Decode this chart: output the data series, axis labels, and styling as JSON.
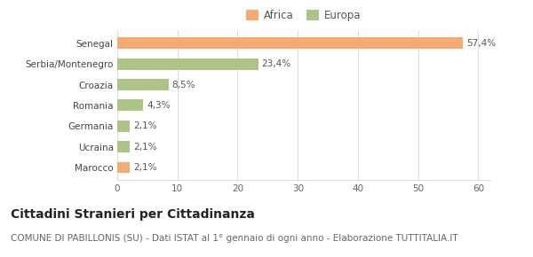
{
  "categories": [
    "Marocco",
    "Ucraina",
    "Germania",
    "Romania",
    "Croazia",
    "Serbia/Montenegro",
    "Senegal"
  ],
  "values": [
    2.1,
    2.1,
    2.1,
    4.3,
    8.5,
    23.4,
    57.4
  ],
  "labels": [
    "2,1%",
    "2,1%",
    "2,1%",
    "4,3%",
    "8,5%",
    "23,4%",
    "57,4%"
  ],
  "colors": [
    "#f5aa72",
    "#adc487",
    "#adc487",
    "#adc487",
    "#adc487",
    "#adc487",
    "#f5aa72"
  ],
  "legend_items": [
    {
      "label": "Africa",
      "color": "#f5aa72"
    },
    {
      "label": "Europa",
      "color": "#adc487"
    }
  ],
  "xlim": [
    0,
    62
  ],
  "xticks": [
    0,
    10,
    20,
    30,
    40,
    50,
    60
  ],
  "title": "Cittadini Stranieri per Cittadinanza",
  "subtitle": "COMUNE DI PABILLONIS (SU) - Dati ISTAT al 1° gennaio di ogni anno - Elaborazione TUTTITALIA.IT",
  "title_fontsize": 10,
  "subtitle_fontsize": 7.5,
  "label_fontsize": 7.5,
  "tick_fontsize": 7.5,
  "legend_fontsize": 8.5,
  "bar_height": 0.55,
  "background_color": "#ffffff",
  "grid_color": "#dddddd"
}
